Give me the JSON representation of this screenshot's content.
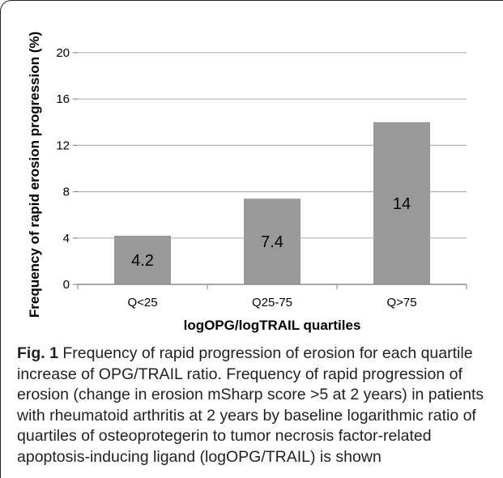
{
  "chart_data": {
    "type": "bar",
    "categories": [
      "Q<25",
      "Q25-75",
      "Q>75"
    ],
    "values": [
      4.2,
      7.4,
      14
    ],
    "data_labels": [
      "4.2",
      "7.4",
      "14"
    ],
    "xlabel": "logOPG/logTRAIL quartiles",
    "ylabel": "Frequency of rapid erosion progression  (%)",
    "ylim": [
      0,
      20
    ],
    "yticks": [
      0,
      4,
      8,
      12,
      16,
      20
    ],
    "grid": true,
    "bar_color": "#999999",
    "grid_color": "#b3b3b3"
  },
  "caption": {
    "label": "Fig. 1",
    "text": " Frequency of rapid progression of erosion for each quartile increase of OPG/TRAIL ratio. Frequency of rapid progression of erosion (change in erosion mSharp score >5 at 2 years) in patients with rheumatoid arthritis at 2 years by baseline logarithmic ratio of quartiles of osteoprotegerin to tumor necrosis factor-related apoptosis-inducing ligand (logOPG/TRAIL) is shown"
  }
}
